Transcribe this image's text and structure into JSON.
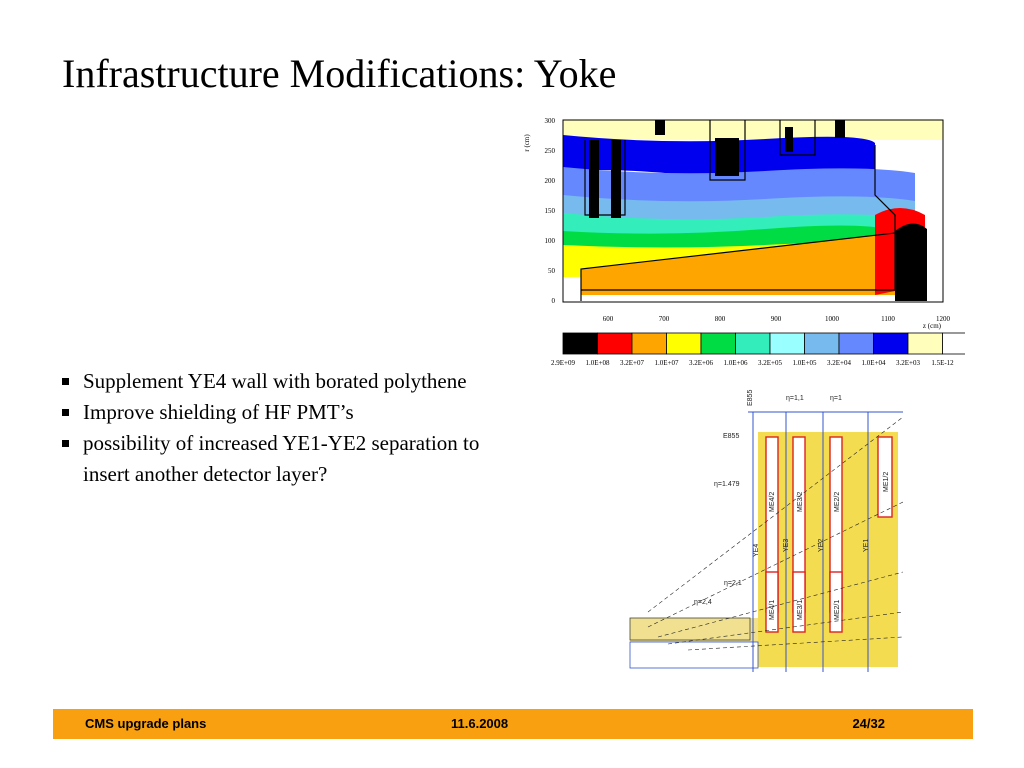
{
  "slide": {
    "title": "Infrastructure Modifications: Yoke",
    "bullets": [
      "Supplement YE4 wall with borated polythene",
      "Improve shielding of HF PMT’s",
      "possibility of increased YE1-YE2 separation to insert another detector layer?"
    ]
  },
  "plot": {
    "ylabel": "r (cm)",
    "xlabel": "z (cm)",
    "yticks": [
      "300",
      "250",
      "200",
      "150",
      "100",
      "50",
      "0"
    ],
    "xticks": [
      "600",
      "700",
      "800",
      "900",
      "1000",
      "1100",
      "1200"
    ],
    "colorbar": [
      {
        "label": "2.9E+09",
        "color": "#000000"
      },
      {
        "label": "1.0E+08",
        "color": "#ff0000"
      },
      {
        "label": "3.2E+07",
        "color": "#ffa500"
      },
      {
        "label": "1.0E+07",
        "color": "#ffff00"
      },
      {
        "label": "3.2E+06",
        "color": "#00dd44"
      },
      {
        "label": "1.0E+06",
        "color": "#33eebb"
      },
      {
        "label": "3.2E+05",
        "color": "#99ffff"
      },
      {
        "label": "1.0E+05",
        "color": "#77bbee"
      },
      {
        "label": "3.2E+04",
        "color": "#6688ff"
      },
      {
        "label": "1.0E+04",
        "color": "#0000ee"
      },
      {
        "label": "3.2E+03",
        "color": "#ffffbb"
      },
      {
        "label": "1.5E-12",
        "color": "#ffffff"
      }
    ]
  },
  "drawing": {
    "labels": {
      "eta11": "η=1,1",
      "eta1": "η=1",
      "eta1479": "η=1.479",
      "eta21": "η=2,1",
      "eta24": "η=2,4",
      "e855": "E855",
      "me42": "ME4/2",
      "me32": "ME3/2",
      "me22": "ME2/2",
      "me12": "ME1/2",
      "me41": "ME4/1",
      "me31": "ME3/1",
      "me21": "ME2/1",
      "ye4": "YE4",
      "ye3": "YE3",
      "ye2": "YE2",
      "ye1": "YE1"
    }
  },
  "footer": {
    "left": "CMS upgrade plans",
    "center": "11.6.2008",
    "right": "24/32"
  }
}
